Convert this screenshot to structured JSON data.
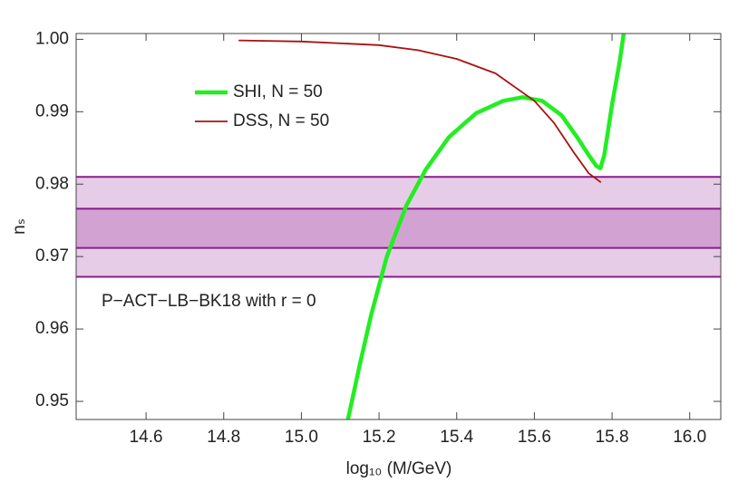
{
  "chart_data": {
    "type": "line",
    "xlabel": "log₁₀ (M/GeV)",
    "ylabel": "nₛ",
    "annotation": "P−ACT−LB−BK18 with r = 0",
    "xlim": [
      14.42,
      16.08
    ],
    "ylim": [
      0.9475,
      1.0008
    ],
    "xticks": [
      14.6,
      14.8,
      {
        "value": 15,
        "label": "15.0"
      },
      15.2,
      15.4,
      15.6,
      15.8,
      {
        "value": 16,
        "label": "16.0"
      }
    ],
    "yticks": [
      0.95,
      0.96,
      0.97,
      0.98,
      0.99,
      {
        "value": 1,
        "label": "1.00"
      }
    ],
    "bands": [
      {
        "range": [
          0.9672,
          0.981
        ],
        "color": "#e6cce6",
        "edge_color": "#8b1a8b"
      },
      {
        "range": [
          0.9712,
          0.9766
        ],
        "color": "#d2a3d2",
        "edge_color": "#8b1a8b"
      }
    ],
    "legend": "upper left",
    "series": [
      {
        "name": "SHI,  N = 50",
        "color": "#22ee22",
        "width": 4.5,
        "x": [
          15.12,
          15.15,
          15.18,
          15.22,
          15.27,
          15.32,
          15.38,
          15.45,
          15.52,
          15.57,
          15.62,
          15.67,
          15.71,
          15.74,
          15.76,
          15.77,
          15.78,
          15.8,
          15.82,
          15.83
        ],
        "values": [
          0.9475,
          0.955,
          0.962,
          0.97,
          0.977,
          0.982,
          0.9865,
          0.9898,
          0.9915,
          0.992,
          0.9915,
          0.9895,
          0.9865,
          0.984,
          0.9825,
          0.9822,
          0.984,
          0.991,
          0.997,
          1.0008
        ]
      },
      {
        "name": "DSS, N = 50",
        "color": "#aa1111",
        "width": 1.8,
        "x": [
          14.84,
          15.0,
          15.2,
          15.3,
          15.4,
          15.5,
          15.6,
          15.65,
          15.7,
          15.74,
          15.77
        ],
        "values": [
          0.99985,
          0.9997,
          0.9992,
          0.9985,
          0.9973,
          0.9953,
          0.9915,
          0.9885,
          0.9845,
          0.9815,
          0.9803
        ]
      }
    ]
  }
}
